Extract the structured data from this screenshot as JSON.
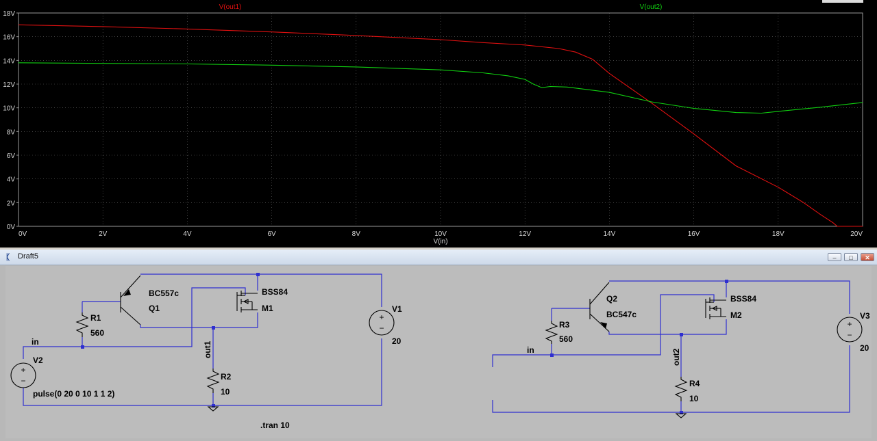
{
  "plot": {
    "trace1_label": "V(out1)",
    "trace2_label": "V(out2)",
    "x_label": "V(in)",
    "colors": {
      "background": "#000000",
      "trace1": "#e01010",
      "trace2": "#10d010",
      "grid": "#6a6a6a"
    }
  },
  "chart_data": {
    "type": "line",
    "xlabel": "V(in)",
    "ylabel": "",
    "xlim": [
      0,
      20
    ],
    "ylim": [
      0,
      18
    ],
    "x_ticks": [
      "0V",
      "2V",
      "4V",
      "6V",
      "8V",
      "10V",
      "12V",
      "14V",
      "16V",
      "18V",
      "20V"
    ],
    "y_ticks": [
      "0V",
      "2V",
      "4V",
      "6V",
      "8V",
      "10V",
      "12V",
      "14V",
      "16V",
      "18V"
    ],
    "series": [
      {
        "name": "V(out1)",
        "color": "#e01010",
        "x": [
          0,
          2,
          4,
          6,
          8,
          10,
          11,
          12,
          12.8,
          13.2,
          13.6,
          14,
          15,
          16,
          17,
          18,
          18.6,
          19.0,
          19.3,
          19.4,
          20
        ],
        "y": [
          17.0,
          16.85,
          16.65,
          16.4,
          16.1,
          15.75,
          15.5,
          15.3,
          15.0,
          14.7,
          14.1,
          12.9,
          10.4,
          7.8,
          5.1,
          3.3,
          2.0,
          1.0,
          0.3,
          0.0,
          0.0
        ]
      },
      {
        "name": "V(out2)",
        "color": "#10d010",
        "x": [
          0,
          2,
          4,
          6,
          8,
          10,
          11,
          11.6,
          12.0,
          12.2,
          12.4,
          12.6,
          13.0,
          14,
          15,
          16,
          17,
          17.6,
          18,
          19,
          20
        ],
        "y": [
          13.8,
          13.75,
          13.7,
          13.6,
          13.45,
          13.2,
          12.95,
          12.7,
          12.4,
          12.0,
          11.7,
          11.8,
          11.75,
          11.3,
          10.5,
          9.95,
          9.6,
          9.55,
          9.7,
          10.05,
          10.45
        ]
      }
    ]
  },
  "schematic": {
    "window_title": "Draft5",
    "minimize_glyph": "–",
    "maximize_glyph": "□",
    "close_glyph": "✕",
    "left": {
      "q1_model": "BC557c",
      "q1_name": "Q1",
      "m1_model": "BSS84",
      "m1_name": "M1",
      "r1_name": "R1",
      "r1_value": "560",
      "r2_name": "R2",
      "r2_value": "10",
      "v1_name": "V1",
      "v1_value": "20",
      "v2_name": "V2",
      "v2_value": "pulse(0 20 0 10 1 1 2)",
      "in_label": "in",
      "out_label": "out1",
      "directive": ".tran 10"
    },
    "right": {
      "q2_name": "Q2",
      "q2_model": "BC547c",
      "m2_model": "BSS84",
      "m2_name": "M2",
      "r3_name": "R3",
      "r3_value": "560",
      "r4_name": "R4",
      "r4_value": "10",
      "v3_name": "V3",
      "v3_value": "20",
      "in_label": "in",
      "out_label": "out2"
    },
    "colors": {
      "wire": "#2f2fd0",
      "canvas": "#bcbcbc"
    }
  }
}
